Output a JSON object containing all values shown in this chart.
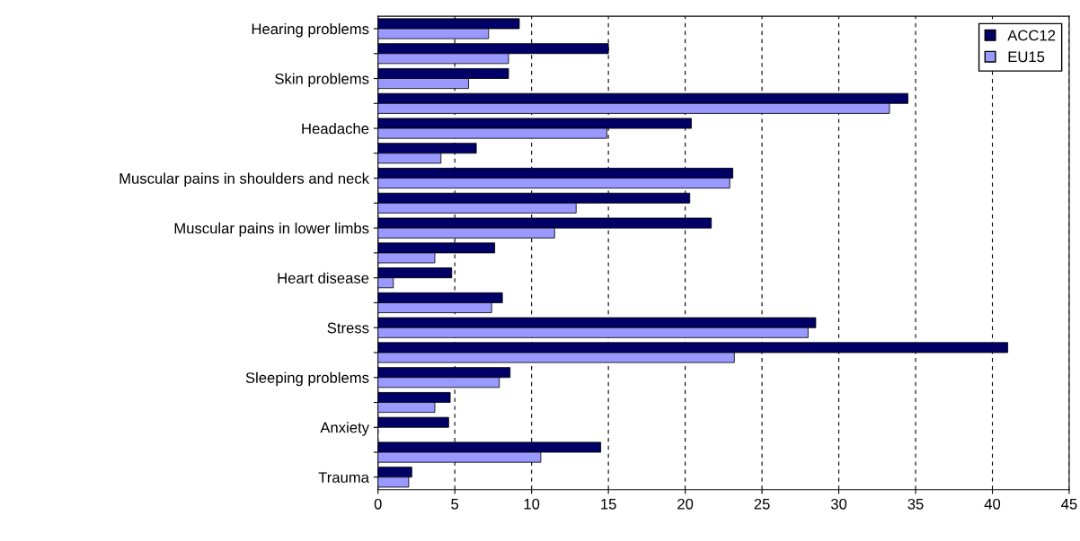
{
  "chart_data": {
    "type": "bar",
    "orientation": "horizontal",
    "categories": [
      "Hearing problems",
      null,
      "Skin problems",
      null,
      "Headache",
      null,
      "Muscular pains in shoulders and neck",
      null,
      "Muscular pains in lower limbs",
      null,
      "Heart disease",
      null,
      "Stress",
      null,
      "Sleeping problems",
      null,
      "Anxiety",
      null,
      "Trauma"
    ],
    "series": [
      {
        "name": "ACC12",
        "color": "#000066",
        "values": [
          9.2,
          15.0,
          8.5,
          34.5,
          20.4,
          6.4,
          23.1,
          20.3,
          21.7,
          7.6,
          4.8,
          8.1,
          28.5,
          41.0,
          8.6,
          4.7,
          4.6,
          14.5,
          2.2
        ]
      },
      {
        "name": "EU15",
        "color": "#9999ff",
        "values": [
          7.2,
          8.5,
          5.9,
          33.3,
          14.9,
          4.1,
          22.9,
          12.9,
          11.5,
          3.7,
          1.0,
          7.4,
          28.0,
          23.2,
          7.9,
          3.7,
          null,
          10.6,
          2.0
        ]
      }
    ],
    "xlim": [
      0,
      45
    ],
    "xticks": [
      0,
      5,
      10,
      15,
      20,
      25,
      30,
      35,
      40,
      45
    ],
    "grid": "x",
    "legend": "top right"
  }
}
